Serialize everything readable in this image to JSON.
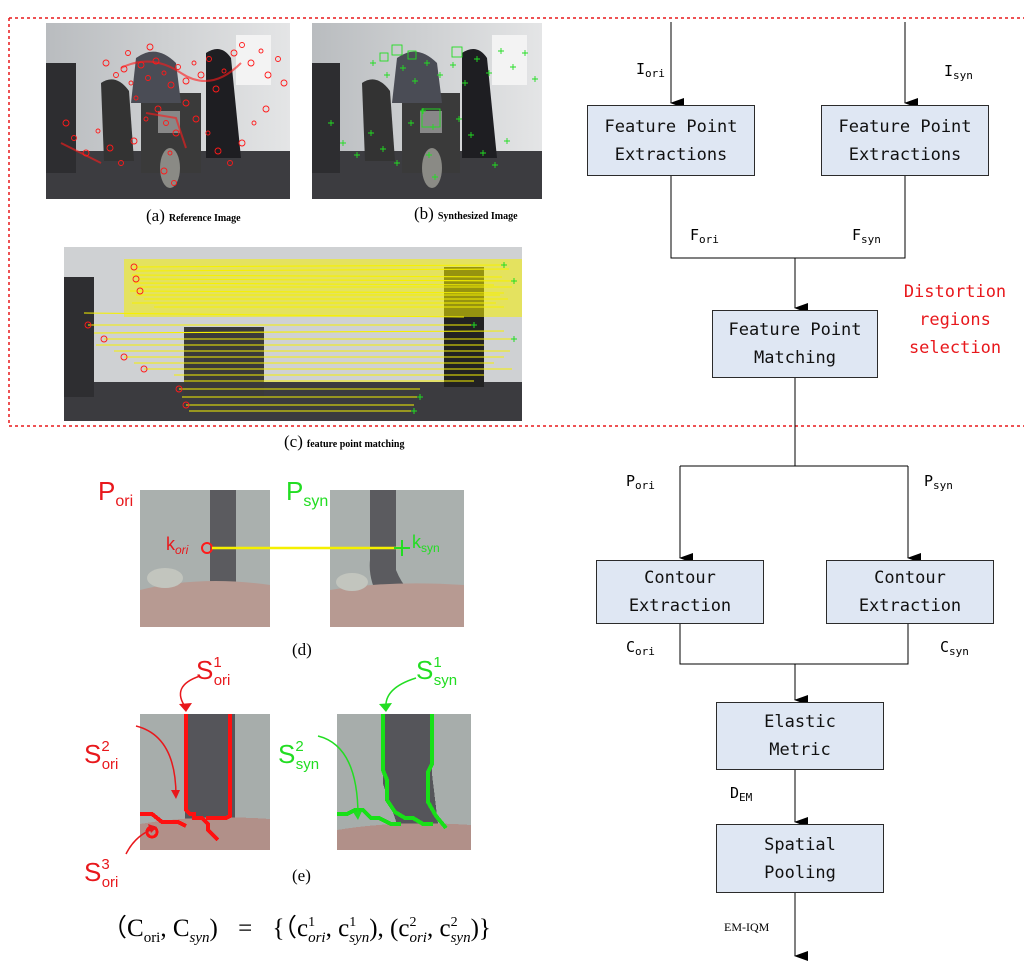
{
  "captions": {
    "a_letter": "(a)",
    "a_text": "Reference Image",
    "b_letter": "(b)",
    "b_text": "Synthesized Image",
    "c_letter": "(c)",
    "c_text": "feature point matching",
    "d": "(d)",
    "e": "(e)"
  },
  "patch_labels": {
    "p_ori": {
      "main": "P",
      "sub": "ori"
    },
    "p_syn": {
      "main": "P",
      "sub": "syn"
    },
    "k_ori": {
      "main": "k",
      "sub": "ori"
    },
    "k_syn": {
      "main": "k",
      "sub": "syn"
    },
    "s1_ori": {
      "main": "S",
      "sup": "1",
      "sub": "ori"
    },
    "s2_ori": {
      "main": "S",
      "sup": "2",
      "sub": "ori"
    },
    "s3_ori": {
      "main": "S",
      "sup": "3",
      "sub": "ori"
    },
    "s1_syn": {
      "main": "S",
      "sup": "1",
      "sub": "syn"
    },
    "s2_syn": {
      "main": "S",
      "sup": "2",
      "sub": "syn"
    }
  },
  "equation": {
    "lhs_open": "（C",
    "lhs_sub1": "ori",
    "comma": ", C",
    "lhs_sub2": "syn",
    "lhs_close": ")",
    "equals": "=",
    "rhs_open": "{（c",
    "c1a_sup": "1",
    "c1a_sub": "ori",
    "c1b": ", c",
    "c1b_sup": "1",
    "c1b_sub": "syn",
    "pair1_close": "), (c",
    "c2a_sup": "2",
    "c2a_sub": "ori",
    "c2b": ", c",
    "c2b_sup": "2",
    "c2b_sub": "syn",
    "rhs_close": ")}"
  },
  "flowchart": {
    "fpe_left": {
      "line1": "Feature Point",
      "line2": "Extractions"
    },
    "fpe_right": {
      "line1": "Feature Point",
      "line2": "Extractions"
    },
    "fpm": {
      "line1": "Feature Point",
      "line2": "Matching"
    },
    "ce_left": {
      "line1": "Contour",
      "line2": "Extraction"
    },
    "ce_right": {
      "line1": "Contour",
      "line2": "Extraction"
    },
    "em": {
      "line1": "Elastic",
      "line2": "Metric"
    },
    "sp": {
      "line1": "Spatial",
      "line2": "Pooling"
    },
    "labels": {
      "i_ori": {
        "main": "I",
        "sub": "ori"
      },
      "i_syn": {
        "main": "I",
        "sub": "syn"
      },
      "f_ori": {
        "main": "F",
        "sub": "ori"
      },
      "f_syn": {
        "main": "F",
        "sub": "syn"
      },
      "p_ori": {
        "main": "P",
        "sub": "ori"
      },
      "p_syn": {
        "main": "P",
        "sub": "syn"
      },
      "c_ori": {
        "main": "C",
        "sub": "ori"
      },
      "c_syn": {
        "main": "C",
        "sub": "syn"
      },
      "d_em": {
        "main": "D",
        "sub": "EM"
      },
      "output": "EM-IQM"
    },
    "distortion": {
      "line1": "Distortion",
      "line2": "regions",
      "line3": "selection"
    }
  },
  "colors": {
    "ref_marker": "#ff1a1a",
    "syn_marker": "#22dd22",
    "match_line": "#f5f000",
    "box_fill": "#dfe7f3",
    "dashed": "#e8181c"
  }
}
